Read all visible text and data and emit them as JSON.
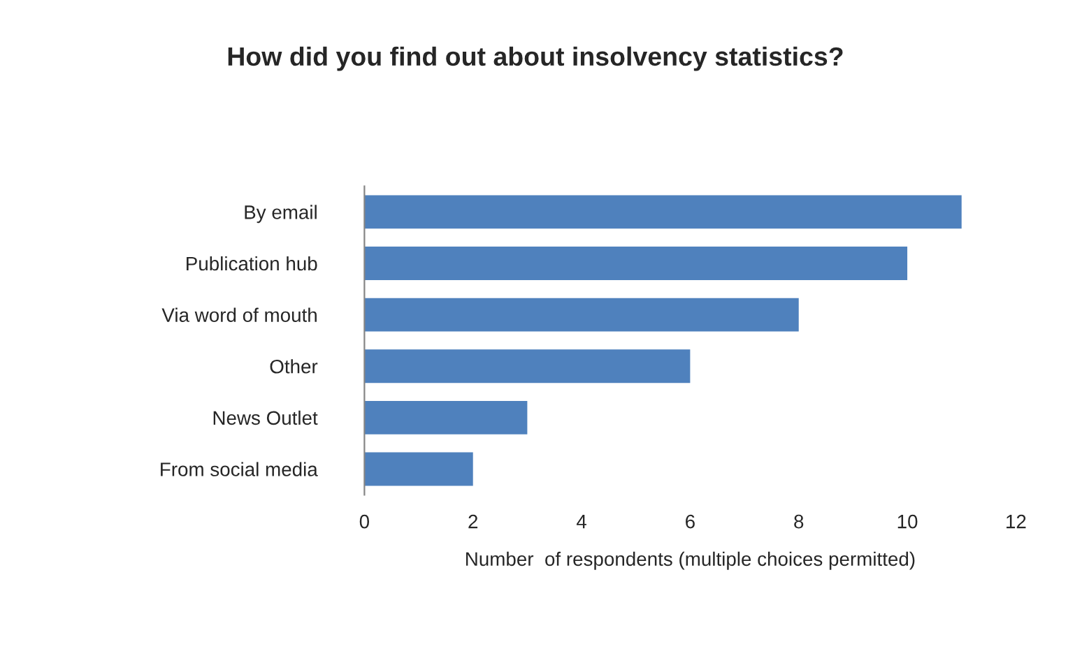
{
  "chart_data": {
    "type": "bar",
    "orientation": "horizontal",
    "title": "How did you find out about insolvency statistics?",
    "xlabel": "Number  of respondents (multiple choices permitted)",
    "categories": [
      "By email",
      "Publication hub",
      "Via word of mouth",
      "Other",
      "News Outlet",
      "From social media"
    ],
    "values": [
      11,
      10,
      8,
      6,
      3,
      2
    ],
    "color": "#4f81bd",
    "xlim": [
      0,
      12
    ],
    "xticks": [
      0,
      2,
      4,
      6,
      8,
      10,
      12
    ],
    "grid": false,
    "legend": false
  }
}
